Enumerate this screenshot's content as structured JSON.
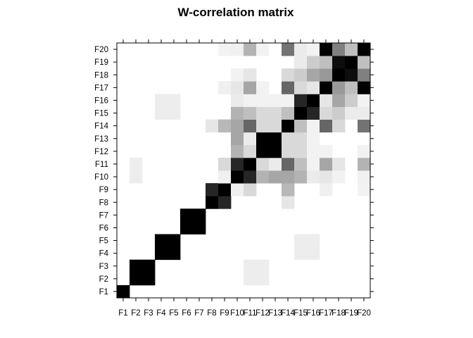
{
  "chart_data": {
    "type": "heatmap",
    "title": "W-correlation matrix",
    "xlabel": "",
    "ylabel": "",
    "labels": [
      "F1",
      "F2",
      "F3",
      "F4",
      "F5",
      "F6",
      "F7",
      "F8",
      "F9",
      "F10",
      "F11",
      "F12",
      "F13",
      "F14",
      "F15",
      "F16",
      "F17",
      "F18",
      "F19",
      "F20"
    ],
    "value_range": [
      0,
      1
    ],
    "color_scale": {
      "low": "#ffffff",
      "high": "#000000"
    },
    "grid": false,
    "legend": "none",
    "matrix": [
      [
        1,
        0,
        0,
        0,
        0,
        0,
        0,
        0,
        0,
        0,
        0,
        0,
        0,
        0,
        0,
        0,
        0,
        0,
        0,
        0
      ],
      [
        0,
        1,
        1,
        0,
        0,
        0,
        0,
        0,
        0,
        0,
        0.07,
        0.07,
        0,
        0,
        0,
        0,
        0,
        0,
        0,
        0
      ],
      [
        0,
        1,
        1,
        0,
        0,
        0,
        0,
        0,
        0,
        0,
        0.07,
        0.07,
        0,
        0,
        0,
        0,
        0,
        0,
        0,
        0
      ],
      [
        0,
        0,
        0,
        1,
        1,
        0,
        0,
        0,
        0,
        0,
        0,
        0,
        0,
        0,
        0.07,
        0.07,
        0,
        0,
        0,
        0
      ],
      [
        0,
        0,
        0,
        1,
        1,
        0,
        0,
        0,
        0,
        0,
        0,
        0,
        0,
        0,
        0.07,
        0.07,
        0,
        0,
        0,
        0
      ],
      [
        0,
        0,
        0,
        0,
        0,
        1,
        1,
        0,
        0,
        0,
        0,
        0,
        0,
        0,
        0,
        0,
        0,
        0,
        0,
        0
      ],
      [
        0,
        0,
        0,
        0,
        0,
        1,
        1,
        0,
        0,
        0,
        0,
        0,
        0,
        0,
        0,
        0,
        0,
        0,
        0,
        0
      ],
      [
        0,
        0,
        0,
        0,
        0,
        0,
        0,
        1,
        0.85,
        0,
        0,
        0,
        0,
        0.1,
        0,
        0,
        0,
        0,
        0,
        0
      ],
      [
        0,
        0,
        0,
        0,
        0,
        0,
        0,
        0.85,
        1,
        0.06,
        0.15,
        0,
        0,
        0.28,
        0,
        0,
        0.06,
        0,
        0,
        0.05
      ],
      [
        0,
        0.07,
        0,
        0,
        0,
        0,
        0,
        0,
        0.06,
        1,
        0.85,
        0.3,
        0.35,
        0.35,
        0.3,
        0.08,
        0.1,
        0.05,
        0,
        0.06
      ],
      [
        0,
        0.07,
        0,
        0,
        0,
        0,
        0,
        0,
        0.15,
        0.85,
        1,
        0.15,
        0.08,
        0.6,
        0.25,
        0.05,
        0.35,
        0.1,
        0,
        0.3
      ],
      [
        0,
        0,
        0,
        0,
        0,
        0,
        0,
        0,
        0,
        0.3,
        0.15,
        1,
        1,
        0.15,
        0.15,
        0.05,
        0.05,
        0,
        0,
        0.05
      ],
      [
        0,
        0,
        0,
        0,
        0,
        0,
        0,
        0,
        0,
        0.35,
        0.08,
        1,
        1,
        0.15,
        0.15,
        0.05,
        0,
        0,
        0,
        0
      ],
      [
        0,
        0,
        0,
        0,
        0,
        0,
        0,
        0.1,
        0.28,
        0.35,
        0.6,
        0.15,
        0.15,
        1,
        0.25,
        0.05,
        0.6,
        0.15,
        0,
        0.55
      ],
      [
        0,
        0,
        0,
        0.07,
        0.07,
        0,
        0,
        0,
        0,
        0.3,
        0.25,
        0.15,
        0.15,
        0.25,
        1,
        0.85,
        0.15,
        0.2,
        0.08,
        0.08
      ],
      [
        0,
        0,
        0,
        0.07,
        0.07,
        0,
        0,
        0,
        0,
        0.08,
        0.05,
        0.05,
        0.05,
        0.05,
        0.85,
        1,
        0.1,
        0.35,
        0.2,
        0.05
      ],
      [
        0,
        0,
        0,
        0,
        0,
        0,
        0,
        0,
        0.06,
        0.1,
        0.35,
        0.05,
        0,
        0.6,
        0.15,
        0.1,
        1,
        0.4,
        0.25,
        1
      ],
      [
        0,
        0,
        0,
        0,
        0,
        0,
        0,
        0,
        0,
        0.05,
        0.1,
        0,
        0,
        0.15,
        0.2,
        0.35,
        0.4,
        1,
        0.95,
        0.5
      ],
      [
        0,
        0,
        0,
        0,
        0,
        0,
        0,
        0,
        0,
        0,
        0,
        0,
        0,
        0,
        0.08,
        0.2,
        0.25,
        0.95,
        1,
        0.25
      ],
      [
        0,
        0,
        0,
        0,
        0,
        0,
        0,
        0,
        0.05,
        0.06,
        0.3,
        0.05,
        0,
        0.55,
        0.08,
        0.05,
        1,
        0.5,
        0.25,
        1
      ]
    ]
  }
}
